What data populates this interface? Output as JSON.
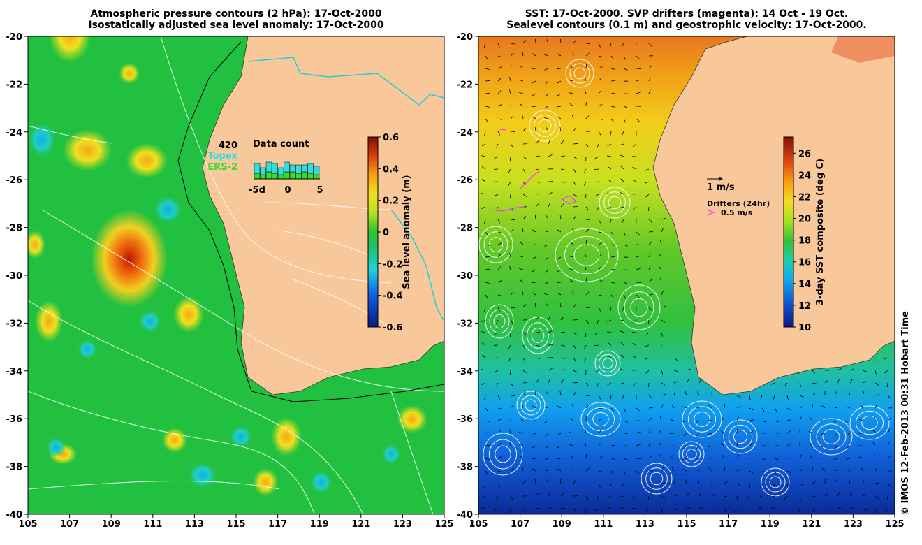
{
  "left_panel": {
    "title_line1": "Atmospheric pressure contours (2 hPa): 17-Oct-2000",
    "title_line2": "Isostatically adjusted sea level anomaly: 17-Oct-2000",
    "colorbar": {
      "label": "Sea level anomaly (m)",
      "ticks": [
        "0.6",
        "0.4",
        "0.2",
        "0",
        "-0.2",
        "-0.4",
        "-0.6"
      ],
      "range": [
        -0.6,
        0.6
      ]
    },
    "data_count": {
      "title": "Data count",
      "max_label": "420",
      "topex_label": "Topex",
      "ers_label": "ERS-2",
      "x_ticks": [
        "-5d",
        "0",
        "5"
      ],
      "topex_color": "#33dddd",
      "ers_color": "#33dd33"
    }
  },
  "right_panel": {
    "title_line1": "SST: 17-Oct-2000. SVP drifters (magenta): 14 Oct - 19 Oct.",
    "title_line2": "Sealevel contours (0.1 m) and geostrophic velocity: 17-Oct-2000.",
    "colorbar": {
      "label": "3-day SST composite (deg C)",
      "ticks": [
        "26",
        "24",
        "22",
        "20",
        "18",
        "16",
        "14",
        "12",
        "10"
      ],
      "range": [
        10,
        27.5
      ]
    },
    "velocity_legend": "1 m/s",
    "drifter_legend_title": "Drifters (24hr)",
    "drifter_legend_value": "0.5 m/s",
    "drifter_color": "#ff33ff"
  },
  "axes": {
    "x_ticks": [
      "105",
      "107",
      "109",
      "111",
      "113",
      "115",
      "117",
      "119",
      "121",
      "123",
      "125"
    ],
    "y_ticks": [
      "-20",
      "-22",
      "-24",
      "-26",
      "-28",
      "-30",
      "-32",
      "-34",
      "-36",
      "-38",
      "-40"
    ],
    "lon_range": [
      105,
      125
    ],
    "lat_range": [
      -40,
      -20
    ]
  },
  "colors": {
    "land": "#f8c89a",
    "sla_positive": "#cc2a00",
    "sla_negative": "#1030b0",
    "sla_neutral": "#22c040"
  },
  "footer": "© IMOS 12-Feb-2013 00:31 Hobart Time"
}
